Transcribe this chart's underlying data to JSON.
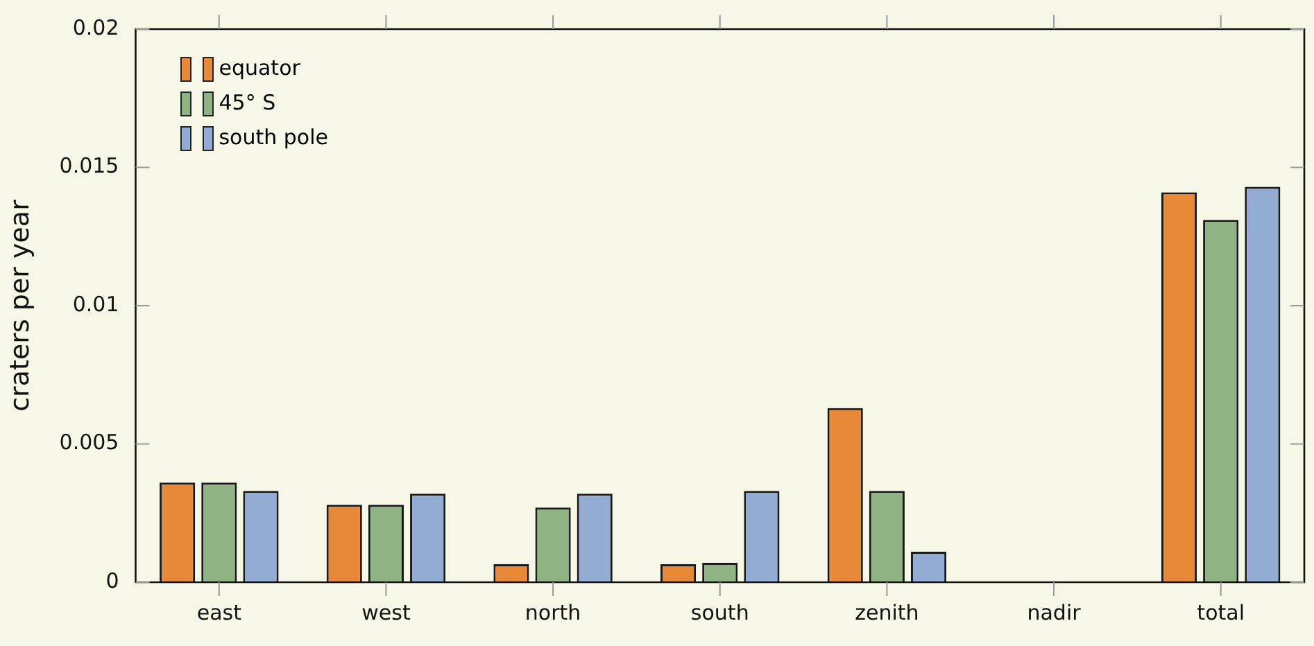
{
  "chart_data": {
    "type": "bar",
    "ylabel": "craters per year",
    "categories": [
      "east",
      "west",
      "north",
      "south",
      "zenith",
      "nadir",
      "total"
    ],
    "series": [
      {
        "name": "equator",
        "color": "#e8893a",
        "values": [
          0.0036,
          0.0028,
          0.00065,
          0.00065,
          0.0063,
          0,
          0.0141
        ]
      },
      {
        "name": "45° S",
        "color": "#8fb383",
        "values": [
          0.0036,
          0.0028,
          0.0027,
          0.0007,
          0.0033,
          0,
          0.0131
        ]
      },
      {
        "name": "south pole",
        "color": "#93acd3",
        "values": [
          0.0033,
          0.0032,
          0.0032,
          0.0033,
          0.0011,
          0,
          0.0143
        ]
      }
    ],
    "ylim": [
      0,
      0.02
    ],
    "yticks": [
      0,
      0.005,
      0.01,
      0.015,
      0.02
    ],
    "grid": false,
    "legend": "top left"
  }
}
